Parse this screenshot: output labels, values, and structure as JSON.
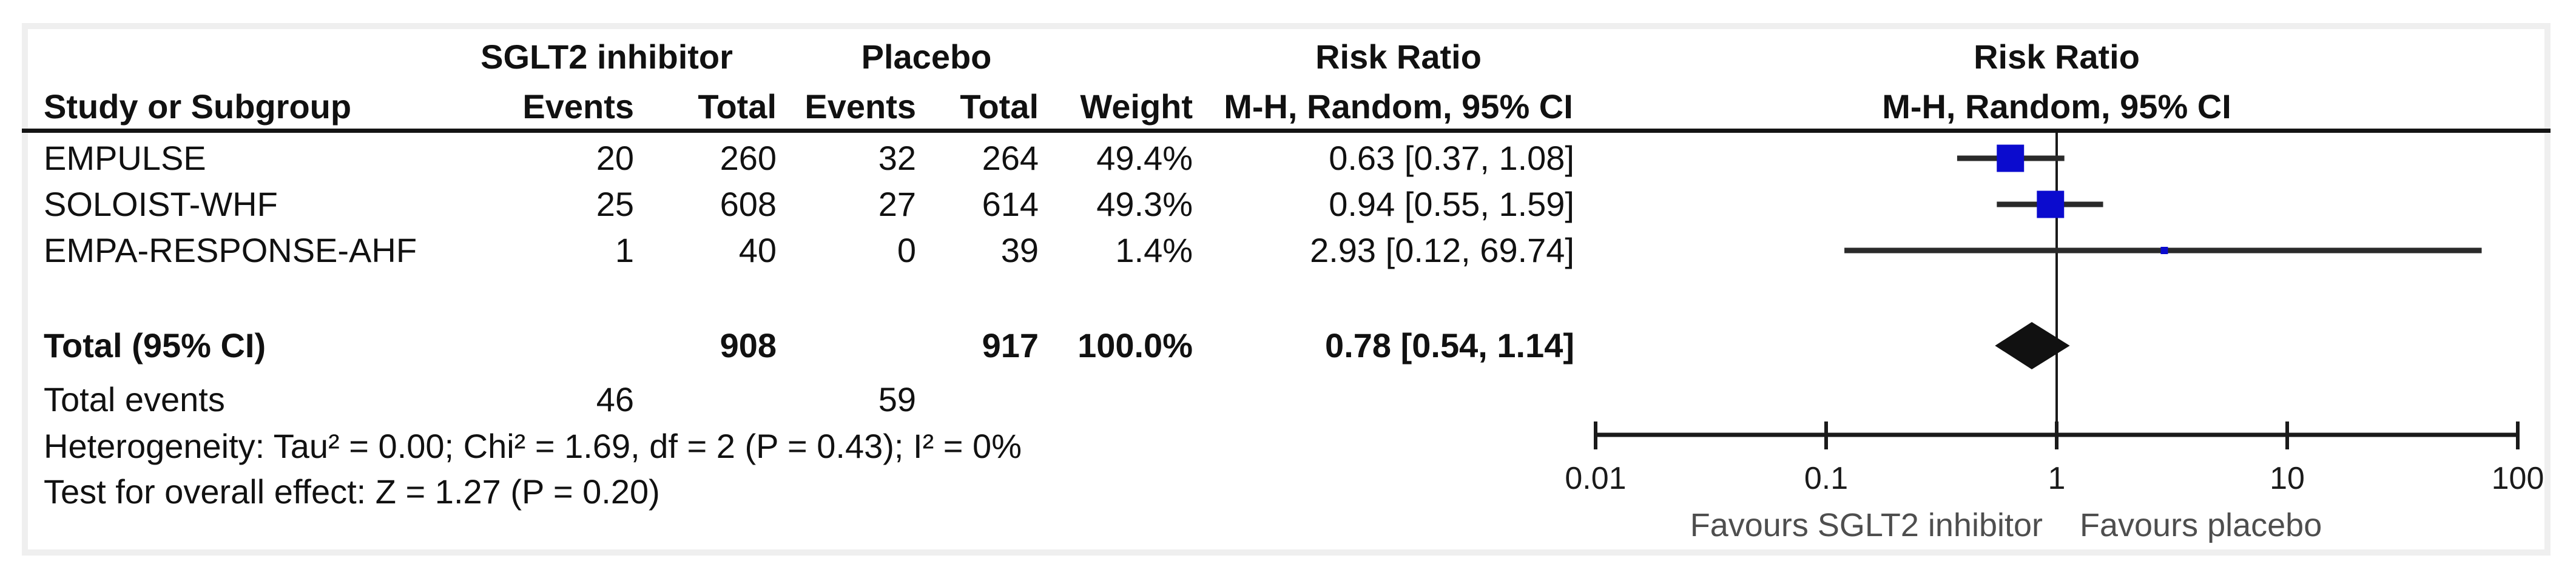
{
  "table": {
    "group_headers": {
      "treatment": "SGLT2 inhibitor",
      "control": "Placebo",
      "risk_ratio": "Risk Ratio"
    },
    "col_headers": {
      "study": "Study or Subgroup",
      "events": "Events",
      "total": "Total",
      "weight": "Weight",
      "mh": "M-H, Random, 95% CI"
    },
    "rows": [
      {
        "study": "EMPULSE",
        "e1": "20",
        "t1": "260",
        "e2": "32",
        "t2": "264",
        "weight": "49.4%",
        "rr": "0.63 [0.37, 1.08]"
      },
      {
        "study": "SOLOIST-WHF",
        "e1": "25",
        "t1": "608",
        "e2": "27",
        "t2": "614",
        "weight": "49.3%",
        "rr": "0.94 [0.55, 1.59]"
      },
      {
        "study": "EMPA-RESPONSE-AHF",
        "e1": "1",
        "t1": "40",
        "e2": "0",
        "t2": "39",
        "weight": "1.4%",
        "rr": "2.93 [0.12, 69.74]"
      }
    ],
    "total": {
      "label": "Total (95% CI)",
      "t1": "908",
      "t2": "917",
      "weight": "100.0%",
      "rr": "0.78 [0.54, 1.14]"
    },
    "total_events": {
      "label": "Total events",
      "e1": "46",
      "e2": "59"
    },
    "heterogeneity": "Heterogeneity: Tau² = 0.00; Chi² = 1.69, df = 2 (P = 0.43); I² = 0%",
    "overall_effect": "Test for overall effect: Z = 1.27 (P = 0.20)"
  },
  "plot": {
    "header_line1": "Risk Ratio",
    "header_line2": "M-H, Random, 95% CI",
    "favours_left": "Favours SGLT2 inhibitor",
    "favours_right": "Favours placebo"
  },
  "colors": {
    "marker_blue": "#0b0bce",
    "diamond_black": "#111111",
    "ci_line": "#2a2a2a",
    "axis_black": "#1a1a1a",
    "favours_gray": "#4e4e4e",
    "frame_gray": "#efefef"
  },
  "chart_data": {
    "type": "forest",
    "effect_measure": "Risk Ratio",
    "method": "M-H, Random, 95% CI",
    "x_scale": "log10",
    "axis_ticks": [
      0.01,
      0.1,
      1,
      10,
      100
    ],
    "axis_range": [
      0.01,
      100
    ],
    "null_value": 1,
    "studies": [
      {
        "name": "EMPULSE",
        "rr": 0.63,
        "ci_low": 0.37,
        "ci_high": 1.08,
        "weight_pct": 49.4
      },
      {
        "name": "SOLOIST-WHF",
        "rr": 0.94,
        "ci_low": 0.55,
        "ci_high": 1.59,
        "weight_pct": 49.3
      },
      {
        "name": "EMPA-RESPONSE-AHF",
        "rr": 2.93,
        "ci_low": 0.12,
        "ci_high": 69.74,
        "weight_pct": 1.4
      }
    ],
    "total": {
      "rr": 0.78,
      "ci_low": 0.54,
      "ci_high": 1.14,
      "weight_pct": 100.0
    },
    "heterogeneity": {
      "tau2": 0.0,
      "chi2": 1.69,
      "df": 2,
      "p": 0.43,
      "i2_pct": 0
    },
    "overall_effect": {
      "z": 1.27,
      "p": 0.2
    }
  }
}
